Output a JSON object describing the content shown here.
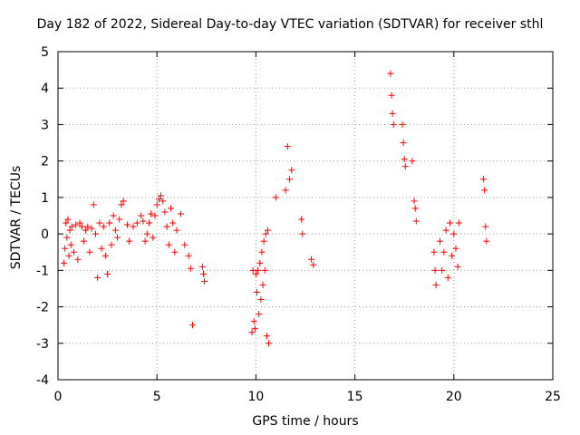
{
  "chart_data": {
    "type": "scatter",
    "title": "Day 182 of 2022, Sidereal Day-to-day VTEC variation (SDTVAR) for receiver sthl",
    "xlabel": "GPS time / hours",
    "ylabel": "SDTVAR / TECUs",
    "xlim": [
      0,
      25
    ],
    "ylim": [
      -4,
      5
    ],
    "xticks": [
      0,
      5,
      10,
      15,
      20,
      25
    ],
    "yticks": [
      -4,
      -3,
      -2,
      -1,
      0,
      1,
      2,
      3,
      4,
      5
    ],
    "grid": true,
    "marker": "+",
    "color": "#ff0000",
    "series": [
      {
        "name": "sthl",
        "points": [
          [
            0.3,
            -0.8
          ],
          [
            0.35,
            -0.4
          ],
          [
            0.4,
            0.3
          ],
          [
            0.45,
            -0.1
          ],
          [
            0.5,
            0.4
          ],
          [
            0.55,
            -0.6
          ],
          [
            0.6,
            0.1
          ],
          [
            0.65,
            -0.3
          ],
          [
            0.7,
            0.2
          ],
          [
            0.8,
            -0.5
          ],
          [
            0.9,
            0.25
          ],
          [
            1.0,
            -0.7
          ],
          [
            1.1,
            0.3
          ],
          [
            1.2,
            0.2
          ],
          [
            1.3,
            -0.2
          ],
          [
            1.4,
            0.1
          ],
          [
            1.5,
            0.2
          ],
          [
            1.6,
            -0.5
          ],
          [
            1.7,
            0.15
          ],
          [
            1.8,
            0.8
          ],
          [
            1.9,
            0.0
          ],
          [
            2.0,
            -1.2
          ],
          [
            2.1,
            0.3
          ],
          [
            2.2,
            -0.4
          ],
          [
            2.3,
            0.2
          ],
          [
            2.4,
            -0.6
          ],
          [
            2.5,
            -1.1
          ],
          [
            2.6,
            0.3
          ],
          [
            2.7,
            -0.3
          ],
          [
            2.8,
            0.5
          ],
          [
            2.9,
            0.1
          ],
          [
            3.0,
            -0.1
          ],
          [
            3.1,
            0.4
          ],
          [
            3.2,
            0.8
          ],
          [
            3.3,
            0.9
          ],
          [
            3.5,
            0.25
          ],
          [
            3.6,
            -0.2
          ],
          [
            3.8,
            0.2
          ],
          [
            4.0,
            0.3
          ],
          [
            4.2,
            0.5
          ],
          [
            4.3,
            0.35
          ],
          [
            4.4,
            -0.2
          ],
          [
            4.5,
            0.0
          ],
          [
            4.6,
            0.3
          ],
          [
            4.7,
            0.55
          ],
          [
            4.8,
            -0.1
          ],
          [
            4.9,
            0.5
          ],
          [
            5.0,
            0.8
          ],
          [
            5.1,
            0.95
          ],
          [
            5.2,
            1.05
          ],
          [
            5.3,
            0.9
          ],
          [
            5.4,
            0.6
          ],
          [
            5.5,
            0.2
          ],
          [
            5.6,
            -0.3
          ],
          [
            5.7,
            0.7
          ],
          [
            5.8,
            0.3
          ],
          [
            5.9,
            -0.5
          ],
          [
            6.0,
            0.1
          ],
          [
            6.2,
            0.55
          ],
          [
            6.4,
            -0.3
          ],
          [
            6.6,
            -0.6
          ],
          [
            6.7,
            -0.95
          ],
          [
            6.8,
            -2.5
          ],
          [
            7.3,
            -0.9
          ],
          [
            7.35,
            -1.1
          ],
          [
            7.4,
            -1.3
          ],
          [
            9.8,
            -2.7
          ],
          [
            9.85,
            -1.0
          ],
          [
            9.9,
            -2.4
          ],
          [
            9.95,
            -2.6
          ],
          [
            10.0,
            -1.1
          ],
          [
            10.05,
            -1.6
          ],
          [
            10.1,
            -1.0
          ],
          [
            10.15,
            -2.2
          ],
          [
            10.2,
            -0.8
          ],
          [
            10.25,
            -1.8
          ],
          [
            10.3,
            -0.5
          ],
          [
            10.35,
            -1.4
          ],
          [
            10.4,
            -0.2
          ],
          [
            10.45,
            -1.0
          ],
          [
            10.5,
            0.0
          ],
          [
            10.55,
            -2.8
          ],
          [
            10.6,
            0.1
          ],
          [
            10.65,
            -3.0
          ],
          [
            11.0,
            1.0
          ],
          [
            11.5,
            1.2
          ],
          [
            11.6,
            2.4
          ],
          [
            11.7,
            1.5
          ],
          [
            11.8,
            1.75
          ],
          [
            12.3,
            0.4
          ],
          [
            12.35,
            0.0
          ],
          [
            12.8,
            -0.7
          ],
          [
            12.9,
            -0.85
          ],
          [
            16.8,
            4.4
          ],
          [
            16.85,
            3.8
          ],
          [
            16.9,
            3.3
          ],
          [
            16.95,
            3.0
          ],
          [
            17.4,
            3.0
          ],
          [
            17.45,
            2.5
          ],
          [
            17.5,
            2.05
          ],
          [
            17.55,
            1.85
          ],
          [
            17.9,
            2.0
          ],
          [
            18.0,
            0.9
          ],
          [
            18.05,
            0.7
          ],
          [
            18.1,
            0.35
          ],
          [
            19.0,
            -0.5
          ],
          [
            19.05,
            -1.0
          ],
          [
            19.1,
            -1.4
          ],
          [
            19.3,
            -0.2
          ],
          [
            19.4,
            -1.0
          ],
          [
            19.5,
            -0.5
          ],
          [
            19.6,
            0.1
          ],
          [
            19.7,
            -1.2
          ],
          [
            19.8,
            0.3
          ],
          [
            19.9,
            -0.6
          ],
          [
            20.0,
            0.0
          ],
          [
            20.1,
            -0.4
          ],
          [
            20.2,
            -0.9
          ],
          [
            20.25,
            0.3
          ],
          [
            21.5,
            1.5
          ],
          [
            21.55,
            1.2
          ],
          [
            21.6,
            0.2
          ],
          [
            21.65,
            -0.2
          ]
        ]
      }
    ]
  }
}
